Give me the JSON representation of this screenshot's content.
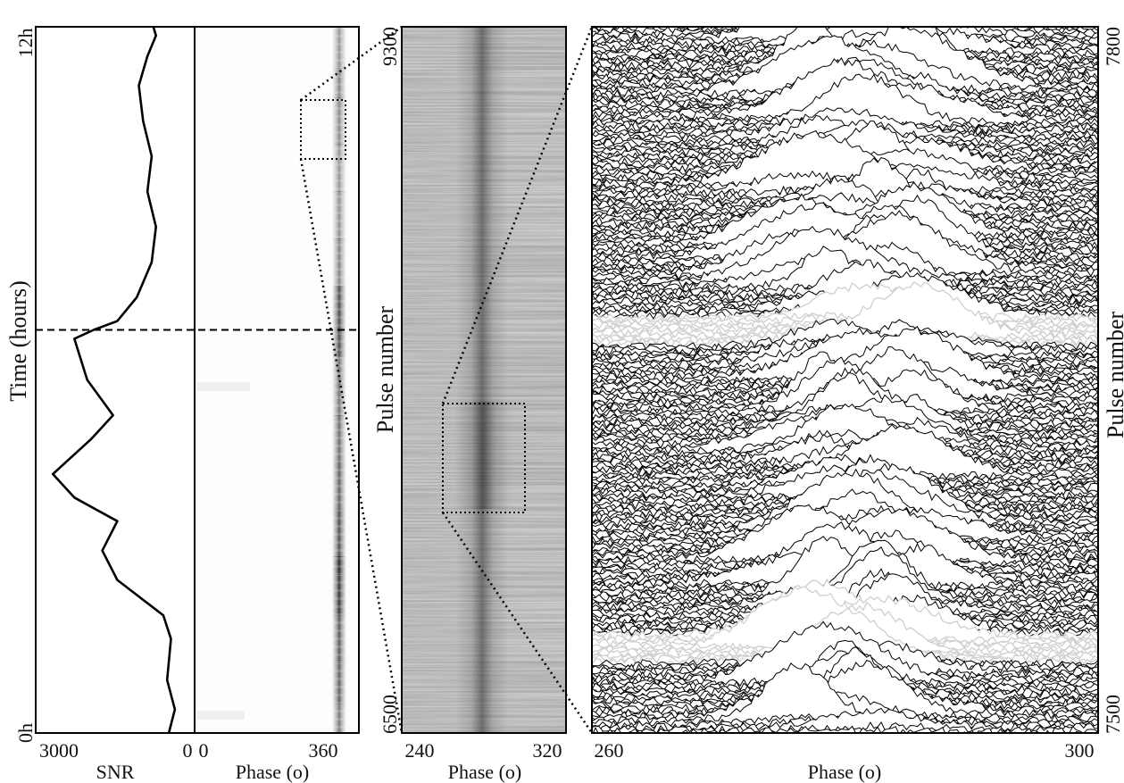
{
  "chart_data": [
    {
      "type": "line",
      "panel": "snr-vs-time",
      "xlabel": "SNR",
      "ylabel": "Time (hours)",
      "x_ticks": [
        "3000",
        "0"
      ],
      "y_ticks": [
        "0h",
        "12h"
      ],
      "xlim": [
        3700,
        0
      ],
      "ylim": [
        0,
        12
      ],
      "series": [
        {
          "points": [
            [
              600,
              0.0
            ],
            [
              460,
              0.4
            ],
            [
              640,
              0.9
            ],
            [
              550,
              1.6
            ],
            [
              730,
              2.0
            ],
            [
              1800,
              2.6
            ],
            [
              2150,
              3.1
            ],
            [
              1800,
              3.6
            ],
            [
              2800,
              4.0
            ],
            [
              3300,
              4.4
            ],
            [
              2400,
              5.0
            ],
            [
              1900,
              5.4
            ],
            [
              2500,
              6.0
            ],
            [
              2800,
              6.7
            ],
            [
              2350,
              6.85
            ],
            [
              1800,
              7.0
            ],
            [
              1350,
              7.4
            ],
            [
              1000,
              8.0
            ],
            [
              900,
              8.6
            ],
            [
              1100,
              9.2
            ],
            [
              1000,
              9.8
            ],
            [
              1200,
              10.4
            ],
            [
              1300,
              11.0
            ],
            [
              1100,
              11.5
            ],
            [
              900,
              11.85
            ],
            [
              960,
              12.0
            ]
          ]
        }
      ],
      "marker_line_hours": 6.85
    },
    {
      "type": "heatmap",
      "panel": "phase-vs-time",
      "xlabel": "Phase (o)",
      "x_ticks": [
        "0",
        "360"
      ],
      "xlim": [
        0,
        400
      ],
      "ylim": [
        0,
        12
      ],
      "pulse_phase_deg": 352,
      "intensity_profile": [
        [
          0.0,
          0.5
        ],
        [
          0.5,
          0.6
        ],
        [
          1.2,
          0.7
        ],
        [
          2.0,
          0.65
        ],
        [
          2.7,
          1.0
        ],
        [
          3.0,
          0.75
        ],
        [
          3.8,
          0.7
        ],
        [
          4.6,
          0.6
        ],
        [
          5.4,
          0.6
        ],
        [
          6.4,
          0.55
        ],
        [
          6.8,
          0.9
        ],
        [
          7.6,
          0.55
        ],
        [
          8.4,
          0.45
        ],
        [
          9.2,
          0.45
        ],
        [
          10.0,
          0.4
        ],
        [
          10.8,
          0.55
        ],
        [
          11.3,
          0.45
        ],
        [
          12.0,
          0.4
        ]
      ]
    },
    {
      "type": "heatmap",
      "panel": "phase-vs-pulse-number",
      "xlabel": "Phase (o)",
      "ylabel": "Pulse number",
      "x_ticks": [
        "240",
        "320"
      ],
      "y_ticks": [
        "6500",
        "9300"
      ],
      "xlim": [
        240,
        320
      ],
      "ylim": [
        6500,
        9300
      ],
      "pulse_phase_deg": 280,
      "zoom_box": {
        "phase": [
          260,
          300
        ],
        "pulse": [
          7500,
          7800
        ]
      }
    },
    {
      "type": "line",
      "panel": "stacked-single-pulses",
      "xlabel": "Phase (o)",
      "ylabel": "Pulse number",
      "x_ticks": [
        "260",
        "300"
      ],
      "y_ticks": [
        "7500",
        "7800"
      ],
      "xlim": [
        260,
        300
      ],
      "ylim": [
        7500,
        7800
      ],
      "pulse_count": 300,
      "highlighted_pulse_bands": [
        [
          7530,
          7542
        ],
        [
          7665,
          7677
        ]
      ]
    }
  ],
  "colors": {
    "trace": "#000000",
    "highlight": "#cfcfcf",
    "heatmap_bg": "#d8d8d8",
    "page": "#ffffff"
  }
}
